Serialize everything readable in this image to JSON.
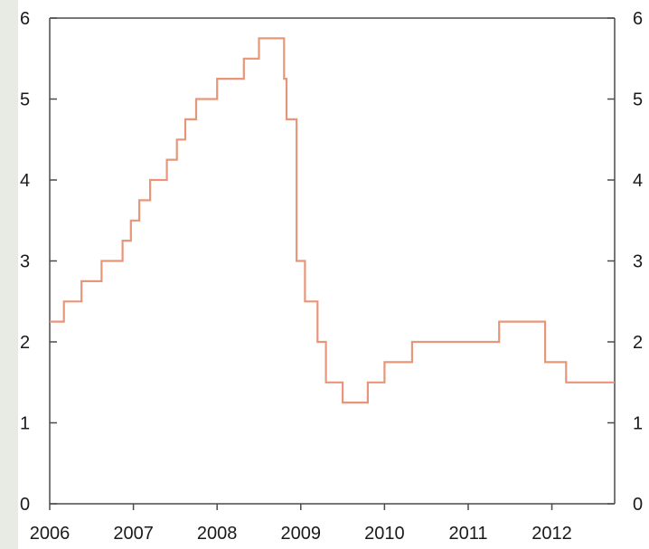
{
  "chart_data": {
    "type": "line",
    "title": "",
    "xlabel": "",
    "ylabel": "",
    "xlim": [
      2006.0,
      2012.75
    ],
    "ylim": [
      0,
      6
    ],
    "xticks": [
      2006,
      2007,
      2008,
      2009,
      2010,
      2011,
      2012
    ],
    "xtick_labels": [
      "2006",
      "2007",
      "2008",
      "2009",
      "2010",
      "2011",
      "2012"
    ],
    "yticks": [
      0,
      1,
      2,
      3,
      4,
      5,
      6
    ],
    "ytick_labels": [
      "0",
      "1",
      "2",
      "3",
      "4",
      "5",
      "6"
    ],
    "right_axis_tick_labels": [
      "0",
      "1",
      "2",
      "3",
      "4",
      "5",
      "6"
    ],
    "grid": false,
    "line_color": "#e8967a",
    "step": true,
    "series": [
      {
        "x": [
          2006.0,
          2006.17,
          2006.38,
          2006.62,
          2006.87,
          2006.97,
          2007.07,
          2007.2,
          2007.4,
          2007.45,
          2007.52,
          2007.62,
          2007.75,
          2008.0,
          2008.32,
          2008.5,
          2008.8,
          2008.83,
          2008.95,
          2009.05,
          2009.2,
          2009.3,
          2009.4,
          2009.5,
          2009.8,
          2009.9,
          2010.0,
          2010.33,
          2011.37,
          2011.92,
          2012.17,
          2012.75
        ],
        "y": [
          2.25,
          2.5,
          2.75,
          3.0,
          3.25,
          3.5,
          3.75,
          4.0,
          4.25,
          4.25,
          4.5,
          4.75,
          5.0,
          5.25,
          5.5,
          5.75,
          5.25,
          4.75,
          3.0,
          2.5,
          2.0,
          1.5,
          1.5,
          1.25,
          1.5,
          1.5,
          1.75,
          2.0,
          2.25,
          1.75,
          1.5,
          1.5
        ]
      }
    ]
  }
}
